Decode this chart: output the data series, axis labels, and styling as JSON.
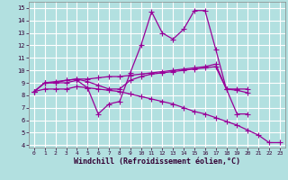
{
  "xlabel": "Windchill (Refroidissement éolien,°C)",
  "xlim": [
    -0.5,
    23.5
  ],
  "ylim": [
    3.8,
    15.5
  ],
  "xticks": [
    0,
    1,
    2,
    3,
    4,
    5,
    6,
    7,
    8,
    9,
    10,
    11,
    12,
    13,
    14,
    15,
    16,
    17,
    18,
    19,
    20,
    21,
    22,
    23
  ],
  "yticks": [
    4,
    5,
    6,
    7,
    8,
    9,
    10,
    11,
    12,
    13,
    14,
    15
  ],
  "background_color": "#b2e0e0",
  "line_color": "#990099",
  "grid_color": "#ffffff",
  "series": [
    {
      "x": [
        0,
        1,
        2,
        3,
        4,
        5,
        6,
        7,
        8,
        9,
        10,
        11,
        12,
        13,
        14,
        15,
        16,
        17,
        18,
        19,
        20,
        21,
        22,
        23
      ],
      "y": [
        8.3,
        9.0,
        9.0,
        9.0,
        9.2,
        8.6,
        6.5,
        7.3,
        7.5,
        9.8,
        12.0,
        14.7,
        13.0,
        12.5,
        13.3,
        14.8,
        14.8,
        11.7,
        8.5,
        6.5,
        6.5,
        null,
        null,
        null
      ]
    },
    {
      "x": [
        0,
        1,
        2,
        3,
        4,
        5,
        6,
        7,
        8,
        9,
        10,
        11,
        12,
        13,
        14,
        15,
        16,
        17,
        18,
        19,
        20,
        21,
        22,
        23
      ],
      "y": [
        8.3,
        9.0,
        9.0,
        9.2,
        9.3,
        9.1,
        8.8,
        8.5,
        8.5,
        9.2,
        9.5,
        9.7,
        9.8,
        9.9,
        10.0,
        10.1,
        10.2,
        10.3,
        8.5,
        8.5,
        8.5,
        null,
        null,
        null
      ]
    },
    {
      "x": [
        0,
        1,
        2,
        3,
        4,
        5,
        6,
        7,
        8,
        9,
        10,
        11,
        12,
        13,
        14,
        15,
        16,
        17,
        18,
        19,
        20,
        21,
        22,
        23
      ],
      "y": [
        8.3,
        9.0,
        9.1,
        9.2,
        9.3,
        9.3,
        9.4,
        9.5,
        9.5,
        9.6,
        9.7,
        9.8,
        9.9,
        10.0,
        10.1,
        10.2,
        10.3,
        10.5,
        8.5,
        8.4,
        8.2,
        null,
        null,
        null
      ]
    },
    {
      "x": [
        0,
        1,
        2,
        3,
        4,
        5,
        6,
        7,
        8,
        9,
        10,
        11,
        12,
        13,
        14,
        15,
        16,
        17,
        18,
        19,
        20,
        21,
        22,
        23
      ],
      "y": [
        8.3,
        8.5,
        8.5,
        8.5,
        8.7,
        8.6,
        8.5,
        8.4,
        8.3,
        8.1,
        7.9,
        7.7,
        7.5,
        7.3,
        7.0,
        6.7,
        6.5,
        6.2,
        5.9,
        5.6,
        5.2,
        4.8,
        4.2,
        4.2
      ]
    }
  ]
}
